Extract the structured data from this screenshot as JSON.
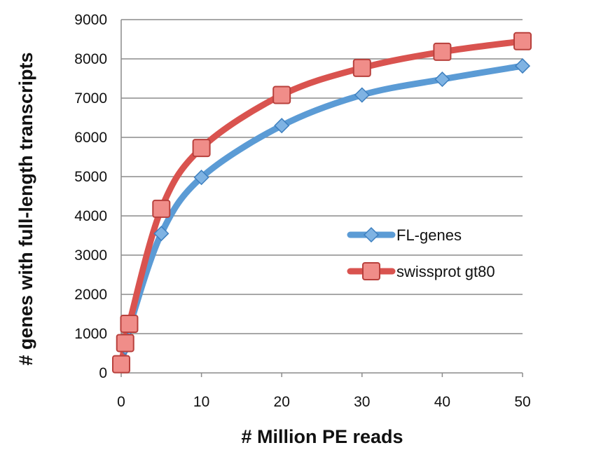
{
  "chart_data": {
    "type": "line",
    "title": "",
    "xlabel": "# Million PE reads",
    "ylabel": "# genes with full-length transcripts",
    "xlim": [
      0,
      50
    ],
    "ylim": [
      0,
      9000
    ],
    "x_ticks": [
      "0",
      "10",
      "20",
      "30",
      "40",
      "50"
    ],
    "y_ticks": [
      "0",
      "1000",
      "2000",
      "3000",
      "4000",
      "5000",
      "6000",
      "7000",
      "8000",
      "9000"
    ],
    "grid": "horizontal",
    "legend_position": "right",
    "series": [
      {
        "name": "FL-genes",
        "color": "#5B9BD5",
        "marker": "diamond",
        "x": [
          0,
          0.5,
          1,
          5,
          10,
          20,
          30,
          40,
          50
        ],
        "y": [
          200,
          650,
          1150,
          3550,
          4980,
          6300,
          7080,
          7480,
          7820
        ]
      },
      {
        "name": "swissprot gt80",
        "color": "#D9534F",
        "marker": "square",
        "x": [
          0,
          0.5,
          1,
          5,
          10,
          20,
          30,
          40,
          50
        ],
        "y": [
          220,
          760,
          1250,
          4180,
          5730,
          7080,
          7770,
          8180,
          8450
        ]
      }
    ]
  }
}
